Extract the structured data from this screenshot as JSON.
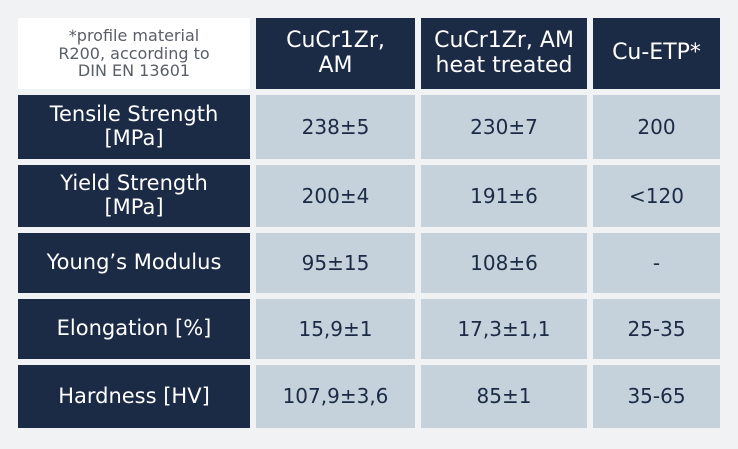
{
  "table": {
    "note": [
      "*profile material",
      "R200, according to",
      "DIN EN 13601"
    ],
    "headers": [
      [
        "CuCr1Zr,",
        "AM"
      ],
      [
        "CuCr1Zr, AM",
        "heat treated"
      ],
      [
        "Cu-ETP*"
      ]
    ],
    "rows": [
      {
        "label": [
          "Tensile Strength",
          "[MPa]"
        ],
        "cells": [
          "238±5",
          "230±7",
          "200"
        ]
      },
      {
        "label": [
          "Yield Strength",
          "[MPa]"
        ],
        "cells": [
          "200±4",
          "191±6",
          "<120"
        ]
      },
      {
        "label": [
          "Young’s Modulus"
        ],
        "cells": [
          "95±15",
          "108±6",
          "-"
        ]
      },
      {
        "label": [
          "Elongation [%]"
        ],
        "cells": [
          "15,9±1",
          "17,3±1,1",
          "25-35"
        ]
      },
      {
        "label": [
          "Hardness [HV]"
        ],
        "cells": [
          "107,9±3,6",
          "85±1",
          "35-65"
        ]
      }
    ]
  }
}
